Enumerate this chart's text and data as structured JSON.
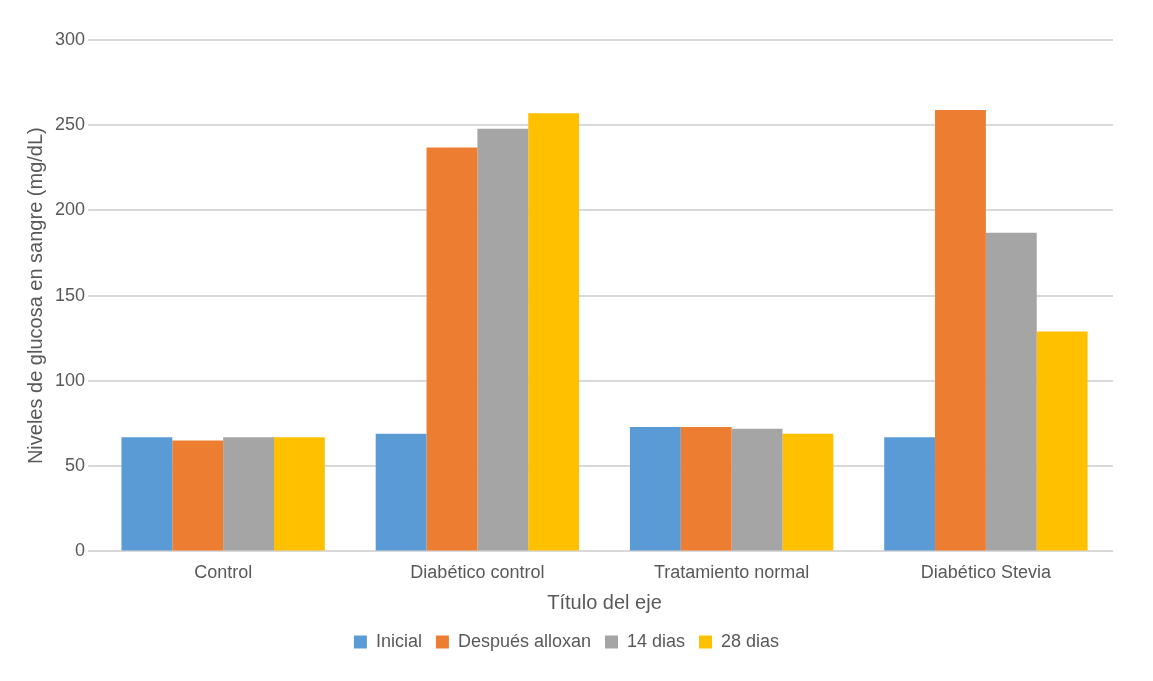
{
  "chart_data": {
    "type": "bar",
    "xlabel": "Título del eje",
    "ylabel": "Niveles de glucosa en sangre (mg/dL)",
    "categories": [
      "Control",
      "Diabético control",
      "Tratamiento normal",
      "Diabético Stevia"
    ],
    "series": [
      {
        "name": "Inicial",
        "color": "#5b9bd5",
        "values": [
          67,
          69,
          73,
          67
        ]
      },
      {
        "name": "Después alloxan",
        "color": "#ed7d31",
        "values": [
          65,
          237,
          73,
          259
        ]
      },
      {
        "name": "14 dias",
        "color": "#a5a5a5",
        "values": [
          67,
          248,
          72,
          187
        ]
      },
      {
        "name": "28 dias",
        "color": "#ffc000",
        "values": [
          67,
          257,
          69,
          129
        ]
      }
    ],
    "ylim": [
      0,
      300
    ],
    "yticks": [
      0,
      50,
      100,
      150,
      200,
      250,
      300
    ],
    "grid": "y",
    "legend": "bottom"
  }
}
